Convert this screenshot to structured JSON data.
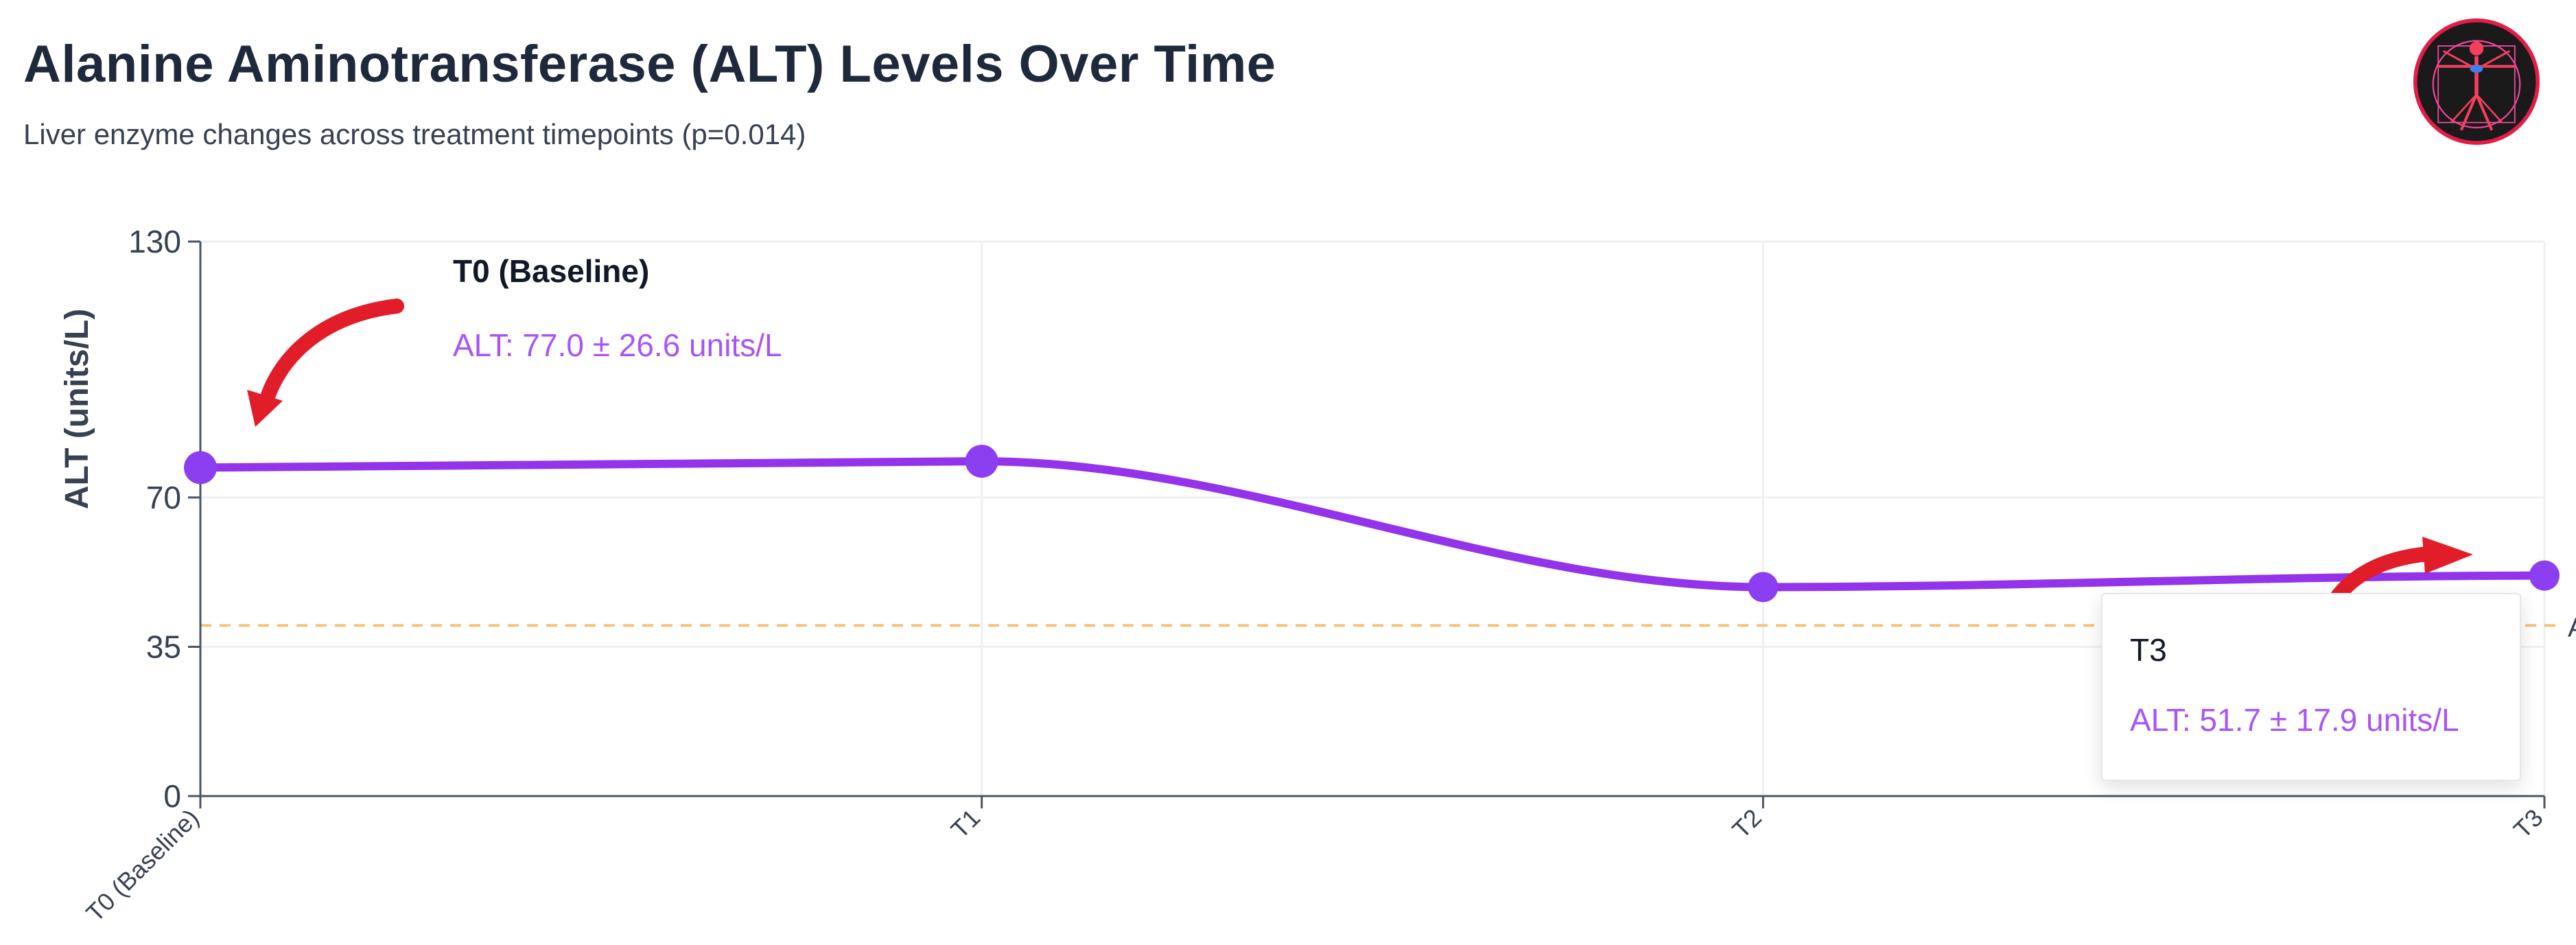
{
  "header": {
    "title": "Alanine Aminotransferase (ALT) Levels Over Time",
    "subtitle": "Liver enzyme changes across treatment timepoints (p=0.014)"
  },
  "logo": {
    "icon": "vitruvian-man-icon"
  },
  "colors": {
    "series": "#9333ea",
    "point": "#8b3ff0",
    "reference_line": "#f5c27a",
    "tooltip_value": "#a855f7",
    "annotation_arrow": "#e11d2a",
    "axis": "#4b5563",
    "grid": "#eef0f3"
  },
  "chart_data": {
    "type": "line",
    "title": "",
    "xlabel": "",
    "ylabel": "ALT (units/L)",
    "categories": [
      "T0 (Baseline)",
      "T1",
      "T2",
      "T3"
    ],
    "series": [
      {
        "values": [
          77.0,
          78.5,
          49.0,
          51.7
        ]
      }
    ],
    "ylim": [
      0,
      130
    ],
    "yticks": [
      0,
      35,
      70,
      130
    ],
    "reference_line": {
      "y": 40,
      "label": "A"
    },
    "grid": true,
    "tooltips": [
      {
        "category": "T0 (Baseline)",
        "title": "T0 (Baseline)",
        "text": "ALT: 77.0 ± 26.6 units/L"
      },
      {
        "category": "T3",
        "title": "T3",
        "text": "ALT: 51.7 ± 17.9 units/L"
      }
    ]
  }
}
